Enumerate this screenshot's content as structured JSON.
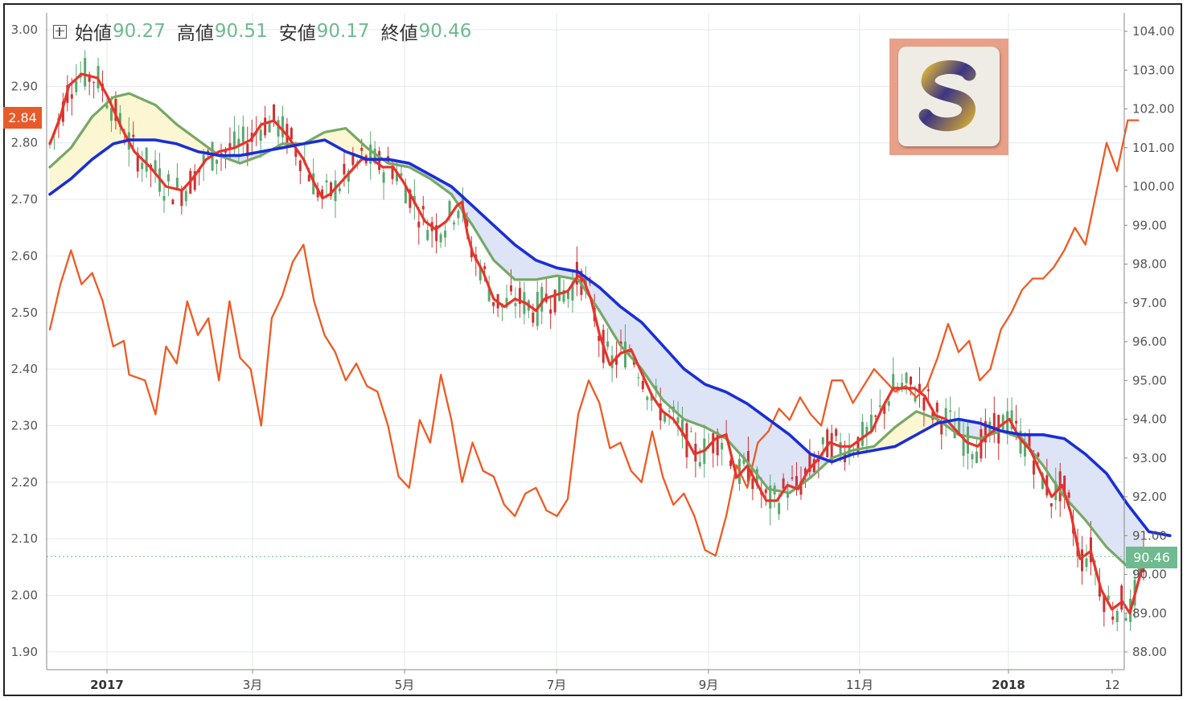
{
  "ohlc": {
    "open_label": "始値",
    "open": "90.27",
    "high_label": "高値",
    "high": "90.51",
    "low_label": "安値",
    "low": "90.17",
    "close_label": "終値",
    "close": "90.46"
  },
  "badges": {
    "left": "2.84",
    "right": "90.46"
  },
  "colors": {
    "candle_up": "#5aa870",
    "candle_down": "#cc3333",
    "ma_fast": "#e8342a",
    "ma_mid": "#77a866",
    "ma_slow": "#1a2ed6",
    "yield_line": "#ee5a24",
    "badge_left": "#e85a2a",
    "badge_right": "#6fba8f",
    "fill_bull": "#fcf7d2",
    "fill_bear": "#dde4f6",
    "logo_bg": "#e8a088"
  },
  "logo": {
    "icon": "s-brand-logo"
  },
  "chart_data": {
    "type": "line",
    "x_labels": [
      "2017",
      "3月",
      "5月",
      "7月",
      "9月",
      "11月",
      "2018",
      "12"
    ],
    "y_left_ticks": [
      "3.00",
      "2.90",
      "2.80",
      "2.70",
      "2.60",
      "2.50",
      "2.40",
      "2.30",
      "2.20",
      "2.10",
      "2.00",
      "1.90"
    ],
    "y_right_ticks": [
      "104.00",
      "103.00",
      "102.00",
      "101.00",
      "100.00",
      "99.00",
      "98.00",
      "97.00",
      "96.00",
      "95.00",
      "94.00",
      "93.00",
      "92.00",
      "91.00",
      "90.00",
      "89.00",
      "88.00"
    ],
    "y_left_range": [
      1.9,
      3.0
    ],
    "y_right_range": [
      88.0,
      104.0
    ],
    "current_left": 2.84,
    "current_right": 90.46,
    "price_right_axis": [
      [
        0,
        101.1
      ],
      [
        0.01,
        101.8
      ],
      [
        0.018,
        102.6
      ],
      [
        0.03,
        102.9
      ],
      [
        0.045,
        102.8
      ],
      [
        0.055,
        102.3
      ],
      [
        0.068,
        101.5
      ],
      [
        0.08,
        100.9
      ],
      [
        0.095,
        100.5
      ],
      [
        0.11,
        100.0
      ],
      [
        0.125,
        99.9
      ],
      [
        0.135,
        100.2
      ],
      [
        0.148,
        100.7
      ],
      [
        0.16,
        100.9
      ],
      [
        0.175,
        101.0
      ],
      [
        0.19,
        101.2
      ],
      [
        0.2,
        101.6
      ],
      [
        0.212,
        101.7
      ],
      [
        0.225,
        101.3
      ],
      [
        0.24,
        100.7
      ],
      [
        0.25,
        100.1
      ],
      [
        0.258,
        99.7
      ],
      [
        0.265,
        99.8
      ],
      [
        0.275,
        100.1
      ],
      [
        0.285,
        100.4
      ],
      [
        0.295,
        100.7
      ],
      [
        0.305,
        100.7
      ],
      [
        0.315,
        100.5
      ],
      [
        0.325,
        100.5
      ],
      [
        0.335,
        100.1
      ],
      [
        0.345,
        99.6
      ],
      [
        0.355,
        99.1
      ],
      [
        0.365,
        98.9
      ],
      [
        0.375,
        99.1
      ],
      [
        0.38,
        99.3
      ],
      [
        0.385,
        99.5
      ],
      [
        0.39,
        99.6
      ],
      [
        0.395,
        98.8
      ],
      [
        0.4,
        98.3
      ],
      [
        0.41,
        97.8
      ],
      [
        0.42,
        97.1
      ],
      [
        0.43,
        96.9
      ],
      [
        0.44,
        97.1
      ],
      [
        0.45,
        97.0
      ],
      [
        0.46,
        96.8
      ],
      [
        0.468,
        97.1
      ],
      [
        0.478,
        97.2
      ],
      [
        0.49,
        97.3
      ],
      [
        0.5,
        97.7
      ],
      [
        0.505,
        97.6
      ],
      [
        0.512,
        97.1
      ],
      [
        0.52,
        96.2
      ],
      [
        0.53,
        95.4
      ],
      [
        0.54,
        95.7
      ],
      [
        0.55,
        95.8
      ],
      [
        0.56,
        95.2
      ],
      [
        0.57,
        94.6
      ],
      [
        0.58,
        94.2
      ],
      [
        0.59,
        94.0
      ],
      [
        0.6,
        93.6
      ],
      [
        0.61,
        93.1
      ],
      [
        0.62,
        93.2
      ],
      [
        0.63,
        93.5
      ],
      [
        0.64,
        93.6
      ],
      [
        0.65,
        92.5
      ],
      [
        0.66,
        92.8
      ],
      [
        0.67,
        92.3
      ],
      [
        0.678,
        91.9
      ],
      [
        0.688,
        91.9
      ],
      [
        0.698,
        92.3
      ],
      [
        0.708,
        92.2
      ],
      [
        0.718,
        92.7
      ],
      [
        0.728,
        93.0
      ],
      [
        0.738,
        93.4
      ],
      [
        0.748,
        93.3
      ],
      [
        0.758,
        93.3
      ],
      [
        0.768,
        93.5
      ],
      [
        0.778,
        93.7
      ],
      [
        0.788,
        94.3
      ],
      [
        0.798,
        94.8
      ],
      [
        0.808,
        94.8
      ],
      [
        0.818,
        94.8
      ],
      [
        0.828,
        94.6
      ],
      [
        0.838,
        94.1
      ],
      [
        0.848,
        94.0
      ],
      [
        0.858,
        93.7
      ],
      [
        0.868,
        93.4
      ],
      [
        0.878,
        93.3
      ],
      [
        0.888,
        93.6
      ],
      [
        0.898,
        93.8
      ],
      [
        0.908,
        94.0
      ],
      [
        0.918,
        93.5
      ],
      [
        0.928,
        93.2
      ],
      [
        0.938,
        92.6
      ],
      [
        0.948,
        92.0
      ],
      [
        0.958,
        92.3
      ],
      [
        0.966,
        91.6
      ],
      [
        0.975,
        90.4
      ],
      [
        0.985,
        90.6
      ],
      [
        0.995,
        89.6
      ],
      [
        1.005,
        89.1
      ],
      [
        1.015,
        89.3
      ],
      [
        1.022,
        89.0
      ],
      [
        1.03,
        89.8
      ],
      [
        1.035,
        90.3
      ]
    ],
    "ma_slow_right_axis": [
      [
        0,
        99.8
      ],
      [
        0.02,
        100.2
      ],
      [
        0.04,
        100.7
      ],
      [
        0.06,
        101.1
      ],
      [
        0.075,
        101.2
      ],
      [
        0.1,
        101.2
      ],
      [
        0.12,
        101.1
      ],
      [
        0.14,
        100.9
      ],
      [
        0.16,
        100.8
      ],
      [
        0.18,
        100.8
      ],
      [
        0.2,
        100.9
      ],
      [
        0.22,
        101.0
      ],
      [
        0.24,
        101.1
      ],
      [
        0.26,
        101.2
      ],
      [
        0.28,
        100.9
      ],
      [
        0.3,
        100.7
      ],
      [
        0.32,
        100.7
      ],
      [
        0.34,
        100.6
      ],
      [
        0.36,
        100.3
      ],
      [
        0.38,
        100.0
      ],
      [
        0.4,
        99.5
      ],
      [
        0.42,
        99.0
      ],
      [
        0.44,
        98.5
      ],
      [
        0.46,
        98.1
      ],
      [
        0.48,
        97.9
      ],
      [
        0.5,
        97.8
      ],
      [
        0.52,
        97.4
      ],
      [
        0.54,
        96.9
      ],
      [
        0.56,
        96.5
      ],
      [
        0.58,
        95.9
      ],
      [
        0.6,
        95.3
      ],
      [
        0.62,
        94.9
      ],
      [
        0.64,
        94.7
      ],
      [
        0.66,
        94.4
      ],
      [
        0.68,
        94.0
      ],
      [
        0.7,
        93.6
      ],
      [
        0.72,
        93.1
      ],
      [
        0.74,
        92.9
      ],
      [
        0.76,
        93.1
      ],
      [
        0.78,
        93.2
      ],
      [
        0.8,
        93.3
      ],
      [
        0.82,
        93.6
      ],
      [
        0.84,
        93.9
      ],
      [
        0.86,
        94.0
      ],
      [
        0.88,
        93.9
      ],
      [
        0.9,
        93.7
      ],
      [
        0.92,
        93.6
      ],
      [
        0.94,
        93.6
      ],
      [
        0.96,
        93.5
      ],
      [
        0.98,
        93.1
      ],
      [
        1.0,
        92.6
      ],
      [
        1.02,
        91.8
      ],
      [
        1.04,
        91.1
      ],
      [
        1.06,
        91.0
      ]
    ],
    "ma_mid_right_axis": [
      [
        0,
        100.5
      ],
      [
        0.02,
        101.0
      ],
      [
        0.04,
        101.8
      ],
      [
        0.06,
        102.3
      ],
      [
        0.075,
        102.4
      ],
      [
        0.1,
        102.1
      ],
      [
        0.12,
        101.6
      ],
      [
        0.14,
        101.2
      ],
      [
        0.16,
        100.8
      ],
      [
        0.18,
        100.6
      ],
      [
        0.2,
        100.8
      ],
      [
        0.22,
        101.1
      ],
      [
        0.24,
        101.1
      ],
      [
        0.26,
        101.4
      ],
      [
        0.28,
        101.5
      ],
      [
        0.3,
        101.0
      ],
      [
        0.32,
        100.6
      ],
      [
        0.34,
        100.5
      ],
      [
        0.36,
        100.2
      ],
      [
        0.38,
        99.8
      ],
      [
        0.4,
        99.0
      ],
      [
        0.42,
        98.1
      ],
      [
        0.44,
        97.6
      ],
      [
        0.46,
        97.6
      ],
      [
        0.48,
        97.7
      ],
      [
        0.5,
        97.6
      ],
      [
        0.52,
        96.8
      ],
      [
        0.54,
        95.9
      ],
      [
        0.56,
        95.3
      ],
      [
        0.58,
        94.5
      ],
      [
        0.6,
        94.0
      ],
      [
        0.62,
        93.8
      ],
      [
        0.64,
        93.5
      ],
      [
        0.66,
        92.9
      ],
      [
        0.68,
        92.2
      ],
      [
        0.7,
        92.1
      ],
      [
        0.72,
        92.5
      ],
      [
        0.74,
        93.0
      ],
      [
        0.76,
        93.2
      ],
      [
        0.78,
        93.3
      ],
      [
        0.8,
        93.8
      ],
      [
        0.82,
        94.2
      ],
      [
        0.84,
        94.0
      ],
      [
        0.86,
        93.6
      ],
      [
        0.88,
        93.5
      ],
      [
        0.9,
        93.7
      ],
      [
        0.92,
        93.5
      ],
      [
        0.94,
        92.8
      ],
      [
        0.96,
        92.0
      ],
      [
        0.98,
        91.4
      ],
      [
        1.0,
        90.7
      ],
      [
        1.02,
        90.2
      ],
      [
        1.035,
        90.2
      ]
    ],
    "yield_left_axis": [
      [
        0,
        2.47
      ],
      [
        0.01,
        2.55
      ],
      [
        0.02,
        2.61
      ],
      [
        0.03,
        2.55
      ],
      [
        0.04,
        2.57
      ],
      [
        0.05,
        2.52
      ],
      [
        0.06,
        2.44
      ],
      [
        0.07,
        2.45
      ],
      [
        0.075,
        2.39
      ],
      [
        0.09,
        2.38
      ],
      [
        0.1,
        2.32
      ],
      [
        0.11,
        2.44
      ],
      [
        0.12,
        2.41
      ],
      [
        0.13,
        2.52
      ],
      [
        0.14,
        2.46
      ],
      [
        0.15,
        2.49
      ],
      [
        0.16,
        2.38
      ],
      [
        0.17,
        2.52
      ],
      [
        0.18,
        2.42
      ],
      [
        0.19,
        2.4
      ],
      [
        0.2,
        2.3
      ],
      [
        0.21,
        2.49
      ],
      [
        0.22,
        2.53
      ],
      [
        0.23,
        2.59
      ],
      [
        0.24,
        2.62
      ],
      [
        0.25,
        2.52
      ],
      [
        0.26,
        2.46
      ],
      [
        0.27,
        2.43
      ],
      [
        0.28,
        2.38
      ],
      [
        0.29,
        2.41
      ],
      [
        0.3,
        2.37
      ],
      [
        0.31,
        2.36
      ],
      [
        0.32,
        2.3
      ],
      [
        0.33,
        2.21
      ],
      [
        0.34,
        2.19
      ],
      [
        0.35,
        2.31
      ],
      [
        0.36,
        2.27
      ],
      [
        0.37,
        2.39
      ],
      [
        0.38,
        2.31
      ],
      [
        0.39,
        2.2
      ],
      [
        0.4,
        2.27
      ],
      [
        0.41,
        2.22
      ],
      [
        0.42,
        2.21
      ],
      [
        0.43,
        2.16
      ],
      [
        0.44,
        2.14
      ],
      [
        0.45,
        2.18
      ],
      [
        0.46,
        2.19
      ],
      [
        0.47,
        2.15
      ],
      [
        0.48,
        2.14
      ],
      [
        0.49,
        2.17
      ],
      [
        0.5,
        2.32
      ],
      [
        0.51,
        2.38
      ],
      [
        0.52,
        2.34
      ],
      [
        0.53,
        2.26
      ],
      [
        0.54,
        2.27
      ],
      [
        0.55,
        2.22
      ],
      [
        0.56,
        2.2
      ],
      [
        0.57,
        2.29
      ],
      [
        0.58,
        2.21
      ],
      [
        0.59,
        2.16
      ],
      [
        0.6,
        2.18
      ],
      [
        0.61,
        2.14
      ],
      [
        0.62,
        2.08
      ],
      [
        0.63,
        2.07
      ],
      [
        0.64,
        2.14
      ],
      [
        0.65,
        2.23
      ],
      [
        0.66,
        2.19
      ],
      [
        0.67,
        2.27
      ],
      [
        0.68,
        2.29
      ],
      [
        0.69,
        2.33
      ],
      [
        0.7,
        2.31
      ],
      [
        0.71,
        2.35
      ],
      [
        0.72,
        2.32
      ],
      [
        0.73,
        2.3
      ],
      [
        0.74,
        2.38
      ],
      [
        0.75,
        2.38
      ],
      [
        0.76,
        2.34
      ],
      [
        0.77,
        2.37
      ],
      [
        0.78,
        2.4
      ],
      [
        0.79,
        2.38
      ],
      [
        0.8,
        2.36
      ],
      [
        0.81,
        2.37
      ],
      [
        0.82,
        2.35
      ],
      [
        0.83,
        2.37
      ],
      [
        0.84,
        2.42
      ],
      [
        0.85,
        2.48
      ],
      [
        0.86,
        2.43
      ],
      [
        0.87,
        2.45
      ],
      [
        0.88,
        2.38
      ],
      [
        0.89,
        2.4
      ],
      [
        0.9,
        2.47
      ],
      [
        0.91,
        2.5
      ],
      [
        0.92,
        2.54
      ],
      [
        0.93,
        2.56
      ],
      [
        0.94,
        2.56
      ],
      [
        0.95,
        2.58
      ],
      [
        0.96,
        2.61
      ],
      [
        0.97,
        2.65
      ],
      [
        0.98,
        2.62
      ],
      [
        0.99,
        2.71
      ],
      [
        1.0,
        2.8
      ],
      [
        1.01,
        2.75
      ],
      [
        1.02,
        2.84
      ],
      [
        1.03,
        2.84
      ]
    ]
  }
}
